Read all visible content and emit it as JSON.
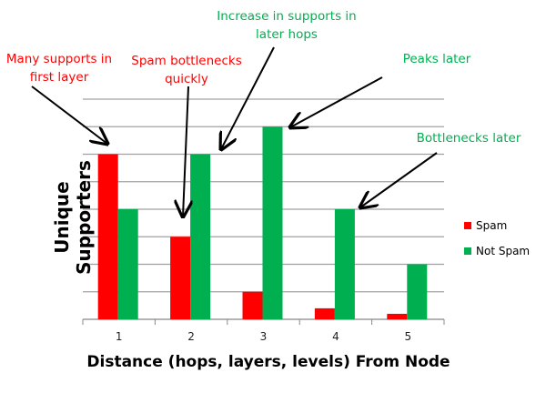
{
  "chart_data": {
    "type": "bar",
    "title": "",
    "xlabel": "Distance (hops, layers, levels) From Node",
    "ylabel": "Unique Supporters",
    "categories": [
      "1",
      "2",
      "3",
      "4",
      "5"
    ],
    "series": [
      {
        "name": "Spam",
        "color": "#ff0000",
        "values": [
          6,
          3,
          1,
          0.4,
          0.2
        ]
      },
      {
        "name": "Not Spam",
        "color": "#00b050",
        "values": [
          4,
          6,
          7,
          4,
          2
        ]
      }
    ],
    "ylim": [
      0,
      8
    ],
    "grid": true,
    "legend": "right",
    "annotations": [
      {
        "text": "Many supports in first layer",
        "color": "#ff0000"
      },
      {
        "text": "Spam bottlenecks quickly",
        "color": "#ff0000"
      },
      {
        "text": "Increase in supports in later hops",
        "color": "#00b050"
      },
      {
        "text": "Peaks later",
        "color": "#00b050"
      },
      {
        "text": "Bottlenecks later",
        "color": "#00b050"
      }
    ]
  }
}
